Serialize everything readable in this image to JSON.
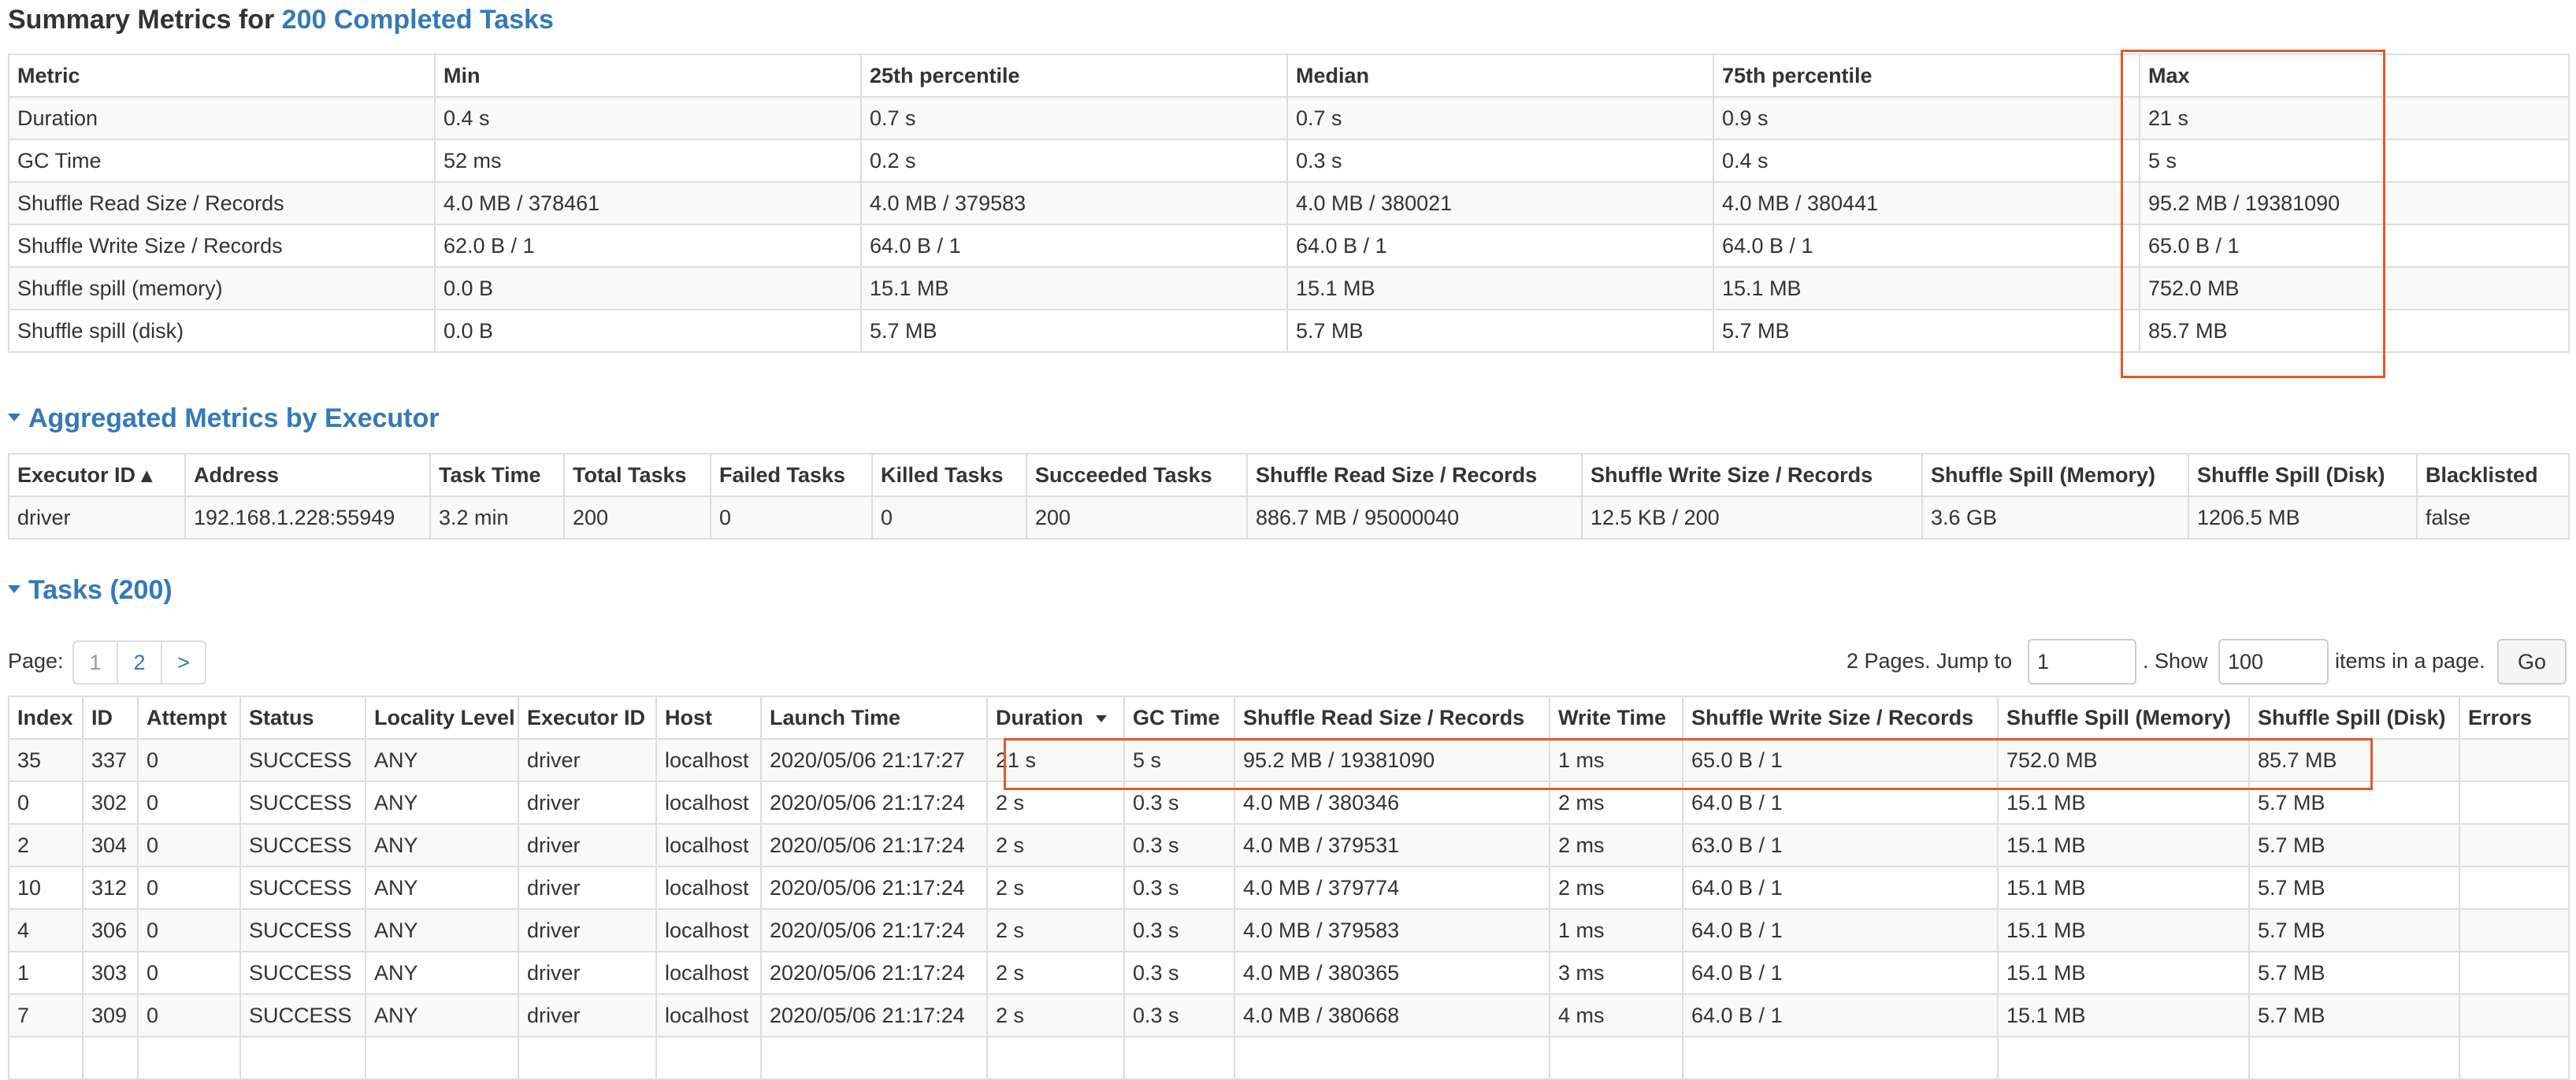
{
  "summary": {
    "title_prefix": "Summary Metrics for ",
    "title_link": "200 Completed Tasks",
    "columns": [
      "Metric",
      "Min",
      "25th percentile",
      "Median",
      "75th percentile",
      "Max"
    ],
    "rows": [
      [
        "Duration",
        "0.4 s",
        "0.7 s",
        "0.7 s",
        "0.9 s",
        "21 s"
      ],
      [
        "GC Time",
        "52 ms",
        "0.2 s",
        "0.3 s",
        "0.4 s",
        "5 s"
      ],
      [
        "Shuffle Read Size / Records",
        "4.0 MB / 378461",
        "4.0 MB / 379583",
        "4.0 MB / 380021",
        "4.0 MB / 380441",
        "95.2 MB / 19381090"
      ],
      [
        "Shuffle Write Size / Records",
        "62.0 B / 1",
        "64.0 B / 1",
        "64.0 B / 1",
        "64.0 B / 1",
        "65.0 B / 1"
      ],
      [
        "Shuffle spill (memory)",
        "0.0 B",
        "15.1 MB",
        "15.1 MB",
        "15.1 MB",
        "752.0 MB"
      ],
      [
        "Shuffle spill (disk)",
        "0.0 B",
        "5.7 MB",
        "5.7 MB",
        "5.7 MB",
        "85.7 MB"
      ]
    ]
  },
  "executor": {
    "title": "Aggregated Metrics by Executor",
    "columns": [
      "Executor ID ▴",
      "Address",
      "Task Time",
      "Total Tasks",
      "Failed Tasks",
      "Killed Tasks",
      "Succeeded Tasks",
      "Shuffle Read Size / Records",
      "Shuffle Write Size / Records",
      "Shuffle Spill (Memory)",
      "Shuffle Spill (Disk)",
      "Blacklisted"
    ],
    "rows": [
      [
        "driver",
        "192.168.1.228:55949",
        "3.2 min",
        "200",
        "0",
        "0",
        "200",
        "886.7 MB / 95000040",
        "12.5 KB / 200",
        "3.6 GB",
        "1206.5 MB",
        "false"
      ]
    ]
  },
  "tasks": {
    "title": "Tasks (200)",
    "page_label": "Page:",
    "pages": [
      "1",
      "2",
      ">"
    ],
    "pages_text": "2 Pages. Jump to",
    "jump_value": "1",
    "show_text": ". Show",
    "show_value": "100",
    "items_text": "items in a page.",
    "go_label": "Go",
    "columns": [
      "Index",
      "ID",
      "Attempt",
      "Status",
      "Locality Level",
      "Executor ID",
      "Host",
      "Launch Time",
      "Duration",
      "GC Time",
      "Shuffle Read Size / Records",
      "Write Time",
      "Shuffle Write Size / Records",
      "Shuffle Spill (Memory)",
      "Shuffle Spill (Disk)",
      "Errors"
    ],
    "rows": [
      [
        "35",
        "337",
        "0",
        "SUCCESS",
        "ANY",
        "driver",
        "localhost",
        "2020/05/06 21:17:27",
        "21 s",
        "5 s",
        "95.2 MB / 19381090",
        "1 ms",
        "65.0 B / 1",
        "752.0 MB",
        "85.7 MB",
        ""
      ],
      [
        "0",
        "302",
        "0",
        "SUCCESS",
        "ANY",
        "driver",
        "localhost",
        "2020/05/06 21:17:24",
        "2 s",
        "0.3 s",
        "4.0 MB / 380346",
        "2 ms",
        "64.0 B / 1",
        "15.1 MB",
        "5.7 MB",
        ""
      ],
      [
        "2",
        "304",
        "0",
        "SUCCESS",
        "ANY",
        "driver",
        "localhost",
        "2020/05/06 21:17:24",
        "2 s",
        "0.3 s",
        "4.0 MB / 379531",
        "2 ms",
        "63.0 B / 1",
        "15.1 MB",
        "5.7 MB",
        ""
      ],
      [
        "10",
        "312",
        "0",
        "SUCCESS",
        "ANY",
        "driver",
        "localhost",
        "2020/05/06 21:17:24",
        "2 s",
        "0.3 s",
        "4.0 MB / 379774",
        "2 ms",
        "64.0 B / 1",
        "15.1 MB",
        "5.7 MB",
        ""
      ],
      [
        "4",
        "306",
        "0",
        "SUCCESS",
        "ANY",
        "driver",
        "localhost",
        "2020/05/06 21:17:24",
        "2 s",
        "0.3 s",
        "4.0 MB / 379583",
        "1 ms",
        "64.0 B / 1",
        "15.1 MB",
        "5.7 MB",
        ""
      ],
      [
        "1",
        "303",
        "0",
        "SUCCESS",
        "ANY",
        "driver",
        "localhost",
        "2020/05/06 21:17:24",
        "2 s",
        "0.3 s",
        "4.0 MB / 380365",
        "3 ms",
        "64.0 B / 1",
        "15.1 MB",
        "5.7 MB",
        ""
      ],
      [
        "7",
        "309",
        "0",
        "SUCCESS",
        "ANY",
        "driver",
        "localhost",
        "2020/05/06 21:17:24",
        "2 s",
        "0.3 s",
        "4.0 MB / 380668",
        "4 ms",
        "64.0 B / 1",
        "15.1 MB",
        "5.7 MB",
        ""
      ],
      [
        "",
        "",
        "",
        "",
        "",
        "",
        "",
        "",
        "",
        "",
        "",
        "",
        "",
        "",
        "",
        ""
      ]
    ]
  },
  "colors": {
    "link": "#337ab7",
    "highlight": "#e4572e",
    "border": "#dddddd",
    "stripe": "#f9f9f9"
  }
}
